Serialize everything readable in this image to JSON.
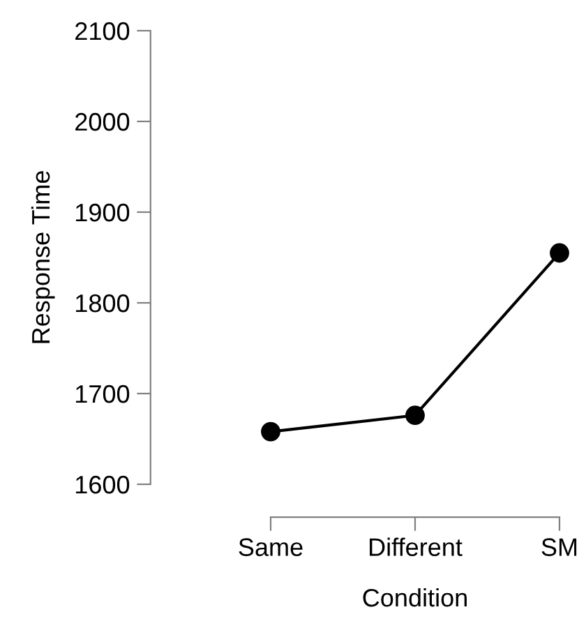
{
  "chart_data": {
    "type": "line",
    "xlabel": "Condition",
    "ylabel": "Response Time",
    "categories": [
      "Same",
      "Different",
      "SM"
    ],
    "series": [
      {
        "color": "#000000",
        "values": [
          1658,
          1676,
          1855
        ]
      }
    ],
    "ylim": [
      1600,
      2100
    ],
    "yticks": [
      1600,
      1700,
      1800,
      1900,
      2000,
      2100
    ],
    "marker": "circle",
    "line_style": "solid",
    "grid": false,
    "legend": false
  }
}
